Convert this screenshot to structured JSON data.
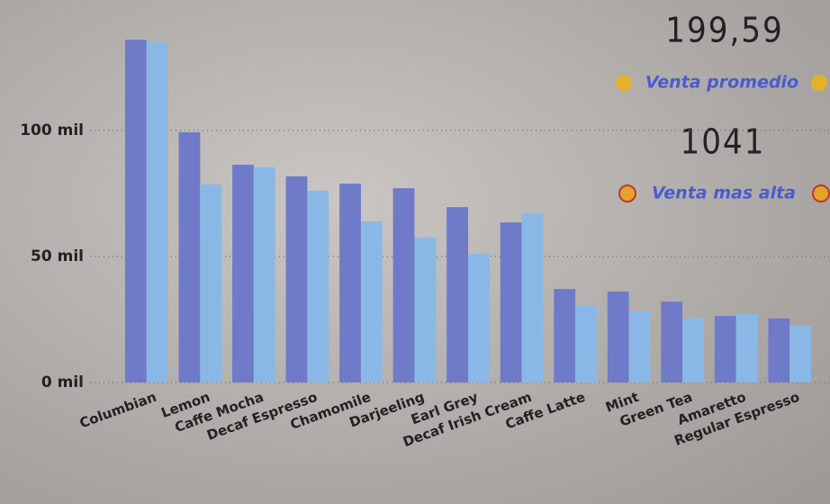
{
  "chart_data": {
    "type": "bar",
    "categories": [
      "Columbian",
      "Lemon",
      "Caffe Mocha",
      "Decaf Espresso",
      "Chamomile",
      "Darjeeling",
      "Earl Grey",
      "Decaf Irish Cream",
      "Caffe Latte",
      "Mint",
      "Green Tea",
      "Amaretto",
      "Regular Espresso"
    ],
    "series": [
      {
        "color": "#6f7bc8",
        "values": [
          136000,
          99300,
          86400,
          81800,
          78900,
          77100,
          69600,
          63500,
          37100,
          36100,
          32100,
          26400,
          25400
        ]
      },
      {
        "color": "#8ab8e6",
        "values": [
          135000,
          78600,
          85400,
          76100,
          63900,
          57500,
          51100,
          67000,
          30700,
          28200,
          25400,
          27100,
          22500
        ]
      }
    ],
    "ylim": [
      0,
      150000
    ],
    "yticks": [
      {
        "value": 0,
        "label": "0 mil"
      },
      {
        "value": 50000,
        "label": "50 mil"
      },
      {
        "value": 100000,
        "label": "100 mil"
      }
    ],
    "grid": true
  },
  "cards": [
    {
      "value": "199,59",
      "label": "Venta promedio"
    },
    {
      "value": "1041",
      "label": "Venta mas alta"
    }
  ]
}
